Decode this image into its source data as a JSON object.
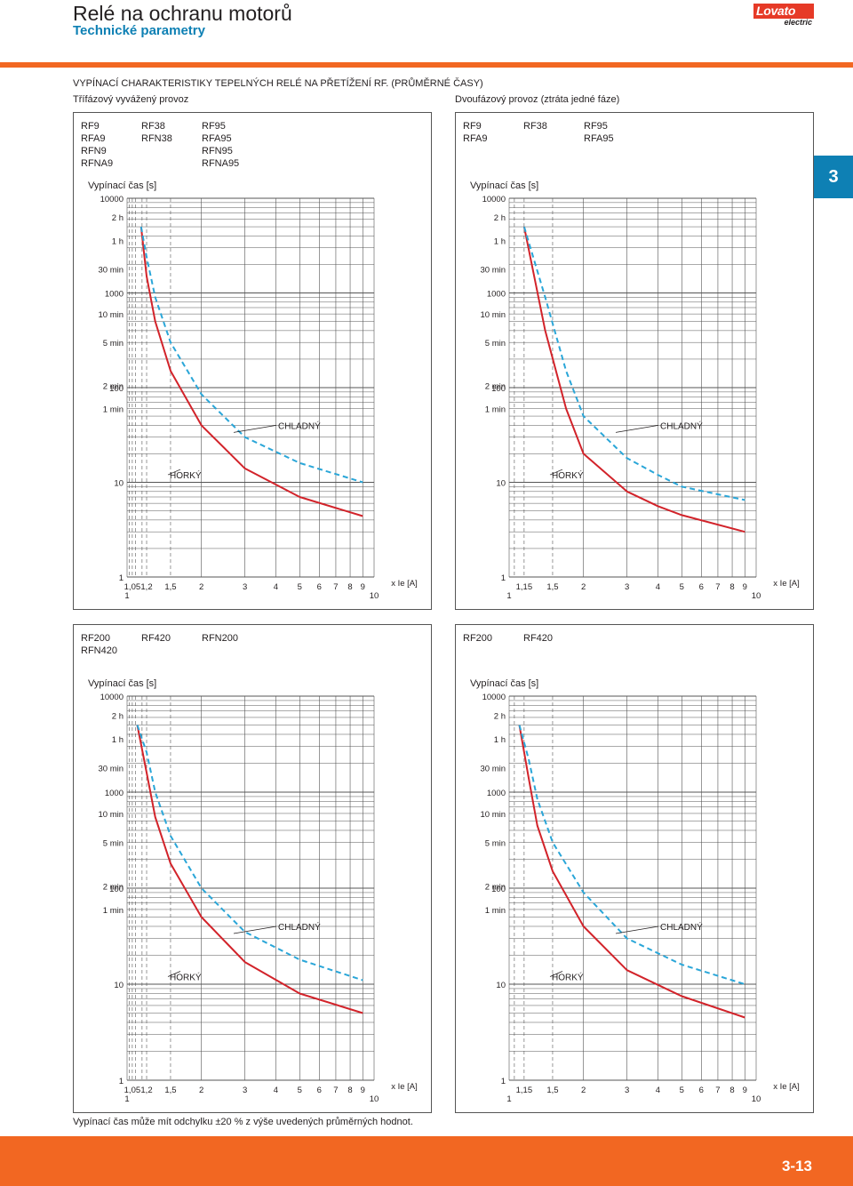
{
  "header": {
    "title": "Relé na ochranu motorů",
    "subtitle": "Technické parametry",
    "logo_text": "Lovato",
    "logo_subtext": "electric"
  },
  "section_heading": "VYPÍNACÍ CHARAKTERISTIKY TEPELNÝCH RELÉ NA PŘETÍŽENÍ RF. (PRŮMĚRNÉ ČASY)",
  "subheading_left": "Třífázový vyvážený provoz",
  "subheading_right": "Dvoufázový provoz (ztráta jedné fáze)",
  "chapter_tab": "3",
  "footnote": "Vypínací čas může mít odchylku ±20 % z výše uvedených průměrných hodnot.",
  "page_number": "3-13",
  "colors": {
    "accent": "#f26722",
    "brand_blue": "#0e80b4",
    "cold_curve": "#d2232a",
    "hot_curve": "#2aa6d8",
    "grid": "#555555"
  },
  "chart_data": [
    {
      "type": "line",
      "models": [
        "RF9",
        "RF38",
        "RF95",
        "RFA9",
        "RFN38",
        "RFA95",
        "RFN9",
        "",
        "RFN95",
        "RFNA9",
        "",
        "RFNA95"
      ],
      "ylabel": "Vypínací čas [s]",
      "xlabel": "x Ie [A]",
      "y_ticks_left": [
        "10000",
        "2 h",
        "1 h",
        "30 min",
        "1000",
        "10 min",
        "5 min",
        "2 min",
        "100",
        "1 min",
        "10",
        "1"
      ],
      "x_tick_labels": [
        "1",
        "1,05",
        "1,2",
        "1,5",
        "2",
        "3",
        "4",
        "5",
        "6",
        "7",
        "8",
        "9",
        "10"
      ],
      "annotations": [
        "CHLADNÝ",
        "HORKÝ"
      ],
      "series": [
        {
          "name": "CHLADNÝ",
          "x": [
            1.14,
            1.2,
            1.3,
            1.5,
            2,
            3,
            5,
            9
          ],
          "y": [
            5000,
            1500,
            500,
            150,
            40,
            14,
            7,
            4.4
          ]
        },
        {
          "name": "HORKÝ",
          "x": [
            1.14,
            1.2,
            1.3,
            1.5,
            2,
            3,
            5,
            9
          ],
          "y": [
            5000,
            2400,
            900,
            300,
            85,
            30,
            16,
            10
          ]
        }
      ]
    },
    {
      "type": "line",
      "models": [
        "RF9",
        "RF38",
        "RF95",
        "RFA9",
        "",
        "RFA95"
      ],
      "ylabel": "Vypínací čas [s]",
      "xlabel": "x Ie [A]",
      "y_ticks_left": [
        "10000",
        "2 h",
        "1 h",
        "30 min",
        "1000",
        "10 min",
        "5 min",
        "2 min",
        "100",
        "1 min",
        "10",
        "1"
      ],
      "x_tick_labels": [
        "1",
        "1,15",
        "1,5",
        "2",
        "3",
        "4",
        "5",
        "6",
        "7",
        "8",
        "9",
        "10"
      ],
      "annotations": [
        "CHLADNÝ",
        "HORKÝ"
      ],
      "series": [
        {
          "name": "CHLADNÝ",
          "x": [
            1.15,
            1.4,
            1.7,
            2,
            3,
            4,
            5,
            9
          ],
          "y": [
            5000,
            400,
            60,
            20,
            8,
            5.6,
            4.5,
            3
          ]
        },
        {
          "name": "HORKÝ",
          "x": [
            1.15,
            1.4,
            1.7,
            2,
            3,
            4,
            5,
            9
          ],
          "y": [
            5000,
            900,
            150,
            50,
            18,
            12,
            9,
            6.5
          ]
        }
      ]
    },
    {
      "type": "line",
      "models": [
        "RF200",
        "RF420",
        "RFN200",
        "RFN420"
      ],
      "ylabel": "Vypínací čas [s]",
      "xlabel": "x Ie [A]",
      "y_ticks_left": [
        "10000",
        "2 h",
        "1 h",
        "30 min",
        "1000",
        "10 min",
        "5 min",
        "2 min",
        "100",
        "1 min",
        "10",
        "1"
      ],
      "x_tick_labels": [
        "1",
        "1,05",
        "1,2",
        "1,5",
        "2",
        "3",
        "4",
        "5",
        "6",
        "7",
        "8",
        "9",
        "10"
      ],
      "annotations": [
        "CHLADNÝ",
        "HORKÝ"
      ],
      "series": [
        {
          "name": "CHLADNÝ",
          "x": [
            1.1,
            1.2,
            1.3,
            1.5,
            2,
            3,
            5,
            9
          ],
          "y": [
            5000,
            1600,
            550,
            180,
            50,
            17,
            8,
            5
          ]
        },
        {
          "name": "HORKÝ",
          "x": [
            1.1,
            1.2,
            1.3,
            1.5,
            2,
            3,
            5,
            9
          ],
          "y": [
            5000,
            2600,
            1000,
            350,
            100,
            35,
            18,
            11
          ]
        }
      ]
    },
    {
      "type": "line",
      "models": [
        "RF200",
        "RF420"
      ],
      "ylabel": "Vypínací čas [s]",
      "xlabel": "x Ie [A]",
      "y_ticks_left": [
        "10000",
        "2 h",
        "1 h",
        "30 min",
        "1000",
        "10 min",
        "5 min",
        "2 min",
        "100",
        "1 min",
        "10",
        "1"
      ],
      "x_tick_labels": [
        "1",
        "1,15",
        "1,5",
        "2",
        "3",
        "4",
        "5",
        "6",
        "7",
        "8",
        "9",
        "10"
      ],
      "annotations": [
        "CHLADNÝ",
        "HORKÝ"
      ],
      "series": [
        {
          "name": "CHLADNÝ",
          "x": [
            1.1,
            1.2,
            1.3,
            1.5,
            2,
            3,
            5,
            9
          ],
          "y": [
            5000,
            1400,
            450,
            150,
            40,
            14,
            7.5,
            4.5
          ]
        },
        {
          "name": "HORKÝ",
          "x": [
            1.1,
            1.2,
            1.3,
            1.5,
            2,
            3,
            5,
            9
          ],
          "y": [
            5000,
            2200,
            850,
            300,
            90,
            30,
            16,
            10
          ]
        }
      ]
    }
  ]
}
